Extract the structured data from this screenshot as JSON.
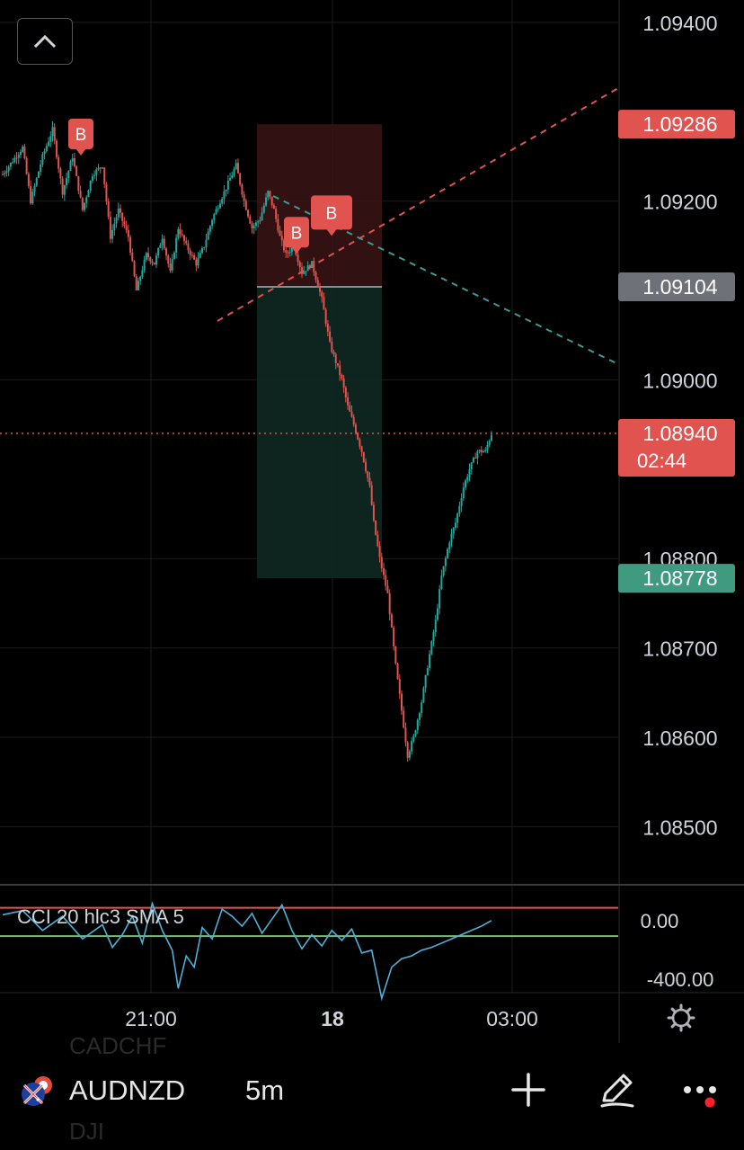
{
  "chart_data": {
    "type": "candlestick",
    "symbol": "AUDNZD",
    "interval": "5m",
    "price_axis": {
      "ticks": [
        "1.09400",
        "1.09200",
        "1.09000",
        "1.08800",
        "1.08700",
        "1.08600",
        "1.08500"
      ],
      "range": [
        1.08435,
        1.09425
      ]
    },
    "time_axis": {
      "ticks": [
        "21:00",
        "18",
        "03:00"
      ]
    },
    "price_labels": {
      "stop": {
        "value": "1.09286",
        "color": "#e0534f"
      },
      "entry": {
        "value": "1.09104",
        "color": "#6f7178"
      },
      "last": {
        "value": "1.08940",
        "countdown": "02:44",
        "color": "#e0534f"
      },
      "target": {
        "value": "1.08778",
        "color": "#3f9a80"
      }
    },
    "short_position": {
      "entry": 1.09104,
      "stop": 1.09286,
      "target": 1.08778
    },
    "signals": [
      {
        "label": "B",
        "price": 1.0925
      },
      {
        "label": "B",
        "price": 1.0914
      },
      {
        "label": "B",
        "price": 1.0916
      }
    ],
    "price_path": [
      [
        0,
        1.0923
      ],
      [
        10,
        1.0926
      ],
      [
        14,
        1.092
      ],
      [
        20,
        1.0925
      ],
      [
        25,
        1.0928
      ],
      [
        30,
        1.0921
      ],
      [
        35,
        1.0925
      ],
      [
        40,
        1.0919
      ],
      [
        45,
        1.0923
      ],
      [
        50,
        1.0924
      ],
      [
        54,
        1.0916
      ],
      [
        58,
        1.0919
      ],
      [
        63,
        1.0916
      ],
      [
        67,
        1.091
      ],
      [
        72,
        1.0914
      ],
      [
        76,
        1.0913
      ],
      [
        80,
        1.0916
      ],
      [
        84,
        1.0912
      ],
      [
        88,
        1.0917
      ],
      [
        92,
        1.0915
      ],
      [
        97,
        1.0913
      ],
      [
        101,
        1.0915
      ],
      [
        105,
        1.0918
      ],
      [
        109,
        1.092
      ],
      [
        113,
        1.0922
      ],
      [
        117,
        1.0924
      ],
      [
        121,
        1.092
      ],
      [
        125,
        1.0917
      ],
      [
        129,
        1.0918
      ],
      [
        133,
        1.0921
      ],
      [
        136,
        1.0919
      ],
      [
        139,
        1.0916
      ],
      [
        142,
        1.0914
      ],
      [
        146,
        1.0915
      ],
      [
        150,
        1.0912
      ],
      [
        155,
        1.0913
      ],
      [
        160,
        1.0909
      ],
      [
        164,
        1.0904
      ],
      [
        167,
        1.0902
      ],
      [
        170,
        1.09
      ],
      [
        173,
        1.0897
      ],
      [
        176,
        1.0895
      ],
      [
        180,
        1.0892
      ],
      [
        184,
        1.0888
      ],
      [
        186,
        1.0884
      ],
      [
        189,
        1.088
      ],
      [
        193,
        1.0876
      ],
      [
        197,
        1.0868
      ],
      [
        200,
        1.0863
      ],
      [
        203,
        1.0858
      ],
      [
        206,
        1.086
      ],
      [
        210,
        1.0864
      ],
      [
        213,
        1.0868
      ],
      [
        217,
        1.0873
      ],
      [
        220,
        1.0878
      ],
      [
        224,
        1.0882
      ],
      [
        227,
        1.0884
      ],
      [
        231,
        1.0888
      ],
      [
        234,
        1.089
      ],
      [
        238,
        1.0892
      ],
      [
        242,
        1.0892
      ],
      [
        245,
        1.0894
      ]
    ],
    "indicator": {
      "title": "CCI 20 hlc3 SMA 5",
      "ticks": [
        "0.00",
        "-400.00"
      ],
      "levels": [
        100,
        -100
      ],
      "range": [
        -500,
        250
      ],
      "values": [
        [
          0,
          50
        ],
        [
          10,
          80
        ],
        [
          20,
          -60
        ],
        [
          30,
          40
        ],
        [
          40,
          -120
        ],
        [
          50,
          -20
        ],
        [
          55,
          -180
        ],
        [
          60,
          -90
        ],
        [
          65,
          40
        ],
        [
          70,
          -150
        ],
        [
          75,
          130
        ],
        [
          80,
          -60
        ],
        [
          85,
          -200
        ],
        [
          88,
          -470
        ],
        [
          92,
          -240
        ],
        [
          96,
          -320
        ],
        [
          100,
          -40
        ],
        [
          105,
          -120
        ],
        [
          110,
          90
        ],
        [
          115,
          40
        ],
        [
          120,
          -30
        ],
        [
          125,
          60
        ],
        [
          130,
          -80
        ],
        [
          135,
          20
        ],
        [
          140,
          120
        ],
        [
          145,
          -60
        ],
        [
          150,
          -190
        ],
        [
          155,
          -90
        ],
        [
          160,
          -170
        ],
        [
          165,
          -60
        ],
        [
          170,
          -130
        ],
        [
          175,
          -50
        ],
        [
          180,
          -220
        ],
        [
          185,
          -200
        ],
        [
          190,
          -540
        ],
        [
          195,
          -320
        ],
        [
          200,
          -260
        ],
        [
          205,
          -240
        ],
        [
          210,
          -200
        ],
        [
          215,
          -180
        ],
        [
          220,
          -150
        ],
        [
          225,
          -120
        ],
        [
          230,
          -90
        ],
        [
          235,
          -60
        ],
        [
          240,
          -30
        ],
        [
          245,
          10
        ]
      ]
    }
  },
  "toolbar": {
    "symbol": "AUDNZD",
    "interval": "5m",
    "ghost_above": "CADCHF",
    "ghost_below": "DJI",
    "icons": [
      "collapse-chevron-icon",
      "au-flag-icon",
      "plus-icon",
      "drawing-pen-icon",
      "more-dots-icon",
      "settings-gear-icon"
    ],
    "notification_dot": "#ff1f2a"
  }
}
